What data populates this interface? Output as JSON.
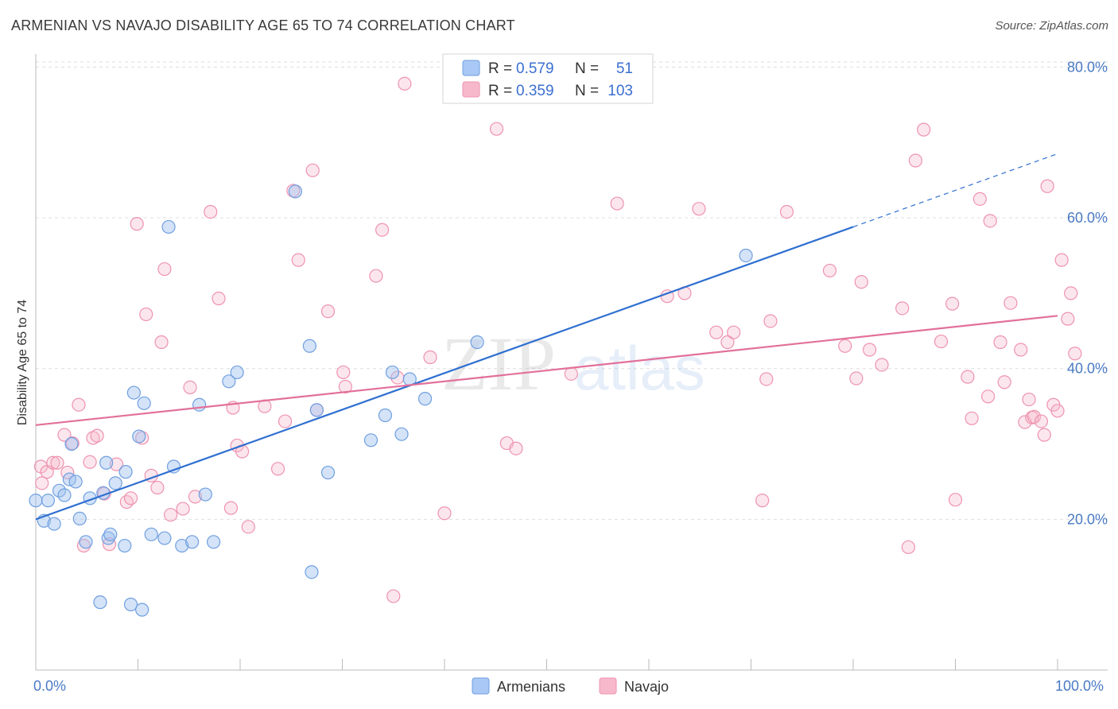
{
  "title": "ARMENIAN VS NAVAJO DISABILITY AGE 65 TO 74 CORRELATION CHART",
  "source": "Source: ZipAtlas.com",
  "watermark": {
    "zip": "ZIP",
    "atlas": "atlas"
  },
  "legend": {
    "r_label": "R =",
    "n_label": "N =",
    "rows": [
      {
        "r": "0.579",
        "n": "51",
        "color": "#a9c8f5"
      },
      {
        "r": "0.359",
        "n": "103",
        "color": "#f7b8cb"
      }
    ]
  },
  "colors": {
    "armenians_fill": "rgba(160,192,240,0.45)",
    "armenians_stroke": "#6f9fe0",
    "armenians_line": "#2f6fd0",
    "navajo_fill": "rgba(246,184,203,0.35)",
    "navajo_stroke": "#ee93b0",
    "navajo_line": "#e2709a",
    "tick_text": "#4a7ac4"
  },
  "chart_data": {
    "type": "scatter",
    "title": "ARMENIAN VS NAVAJO DISABILITY AGE 65 TO 74 CORRELATION CHART",
    "xlabel": "",
    "ylabel": "Disability Age 65 to 74",
    "xlim": [
      0,
      100
    ],
    "ylim": [
      0,
      85
    ],
    "x_tick_labels": [
      "0.0%",
      "100.0%"
    ],
    "y_ticks": [
      20,
      40,
      60,
      80
    ],
    "y_tick_labels": [
      "20.0%",
      "40.0%",
      "60.0%",
      "80.0%"
    ],
    "grid": true,
    "legend_position": "top-center",
    "series": [
      {
        "name": "Armenians",
        "r": 0.579,
        "n": 51,
        "trend": {
          "x": [
            0,
            80
          ],
          "y": [
            20.0,
            58.8
          ],
          "dashed_to": [
            100,
            68.5
          ]
        },
        "points": [
          [
            0,
            22.5
          ],
          [
            0.8,
            19.8
          ],
          [
            1.2,
            22.5
          ],
          [
            1.8,
            19.4
          ],
          [
            2.3,
            23.8
          ],
          [
            2.8,
            23.2
          ],
          [
            3.3,
            25.3
          ],
          [
            3.5,
            30.0
          ],
          [
            3.9,
            25.0
          ],
          [
            4.3,
            20.1
          ],
          [
            4.9,
            17.0
          ],
          [
            5.3,
            22.8
          ],
          [
            6.3,
            9.0
          ],
          [
            6.6,
            23.5
          ],
          [
            6.9,
            27.5
          ],
          [
            7.1,
            17.5
          ],
          [
            7.3,
            18.0
          ],
          [
            7.8,
            24.8
          ],
          [
            8.7,
            16.5
          ],
          [
            8.8,
            26.3
          ],
          [
            9.3,
            8.7
          ],
          [
            9.6,
            36.8
          ],
          [
            10.1,
            31.0
          ],
          [
            10.4,
            8.0
          ],
          [
            10.6,
            35.4
          ],
          [
            11.3,
            18.0
          ],
          [
            12.6,
            17.5
          ],
          [
            13.0,
            58.8
          ],
          [
            13.5,
            27.0
          ],
          [
            14.3,
            16.5
          ],
          [
            15.3,
            17.0
          ],
          [
            16.0,
            35.2
          ],
          [
            16.6,
            23.3
          ],
          [
            17.4,
            17.0
          ],
          [
            18.9,
            38.3
          ],
          [
            19.7,
            39.5
          ],
          [
            25.4,
            63.5
          ],
          [
            26.8,
            43.0
          ],
          [
            27.0,
            13.0
          ],
          [
            27.5,
            34.5
          ],
          [
            28.6,
            26.2
          ],
          [
            32.8,
            30.5
          ],
          [
            34.2,
            33.8
          ],
          [
            34.9,
            39.5
          ],
          [
            35.8,
            31.3
          ],
          [
            36.6,
            38.6
          ],
          [
            38.1,
            36.0
          ],
          [
            43.2,
            43.5
          ],
          [
            69.5,
            55.0
          ]
        ]
      },
      {
        "name": "Navajo",
        "r": 0.359,
        "n": 103,
        "trend": {
          "x": [
            0,
            100
          ],
          "y": [
            32.5,
            47.0
          ]
        },
        "points": [
          [
            0.5,
            27.0
          ],
          [
            0.6,
            24.8
          ],
          [
            1.1,
            26.3
          ],
          [
            1.7,
            27.5
          ],
          [
            2.1,
            27.5
          ],
          [
            2.8,
            31.2
          ],
          [
            3.1,
            26.2
          ],
          [
            3.6,
            30.1
          ],
          [
            4.2,
            35.2
          ],
          [
            4.7,
            16.5
          ],
          [
            5.3,
            27.6
          ],
          [
            5.6,
            30.8
          ],
          [
            6.0,
            31.1
          ],
          [
            6.7,
            23.4
          ],
          [
            7.2,
            16.7
          ],
          [
            7.9,
            27.3
          ],
          [
            8.9,
            22.3
          ],
          [
            9.3,
            22.8
          ],
          [
            9.9,
            59.2
          ],
          [
            10.4,
            30.8
          ],
          [
            10.8,
            47.2
          ],
          [
            11.3,
            25.8
          ],
          [
            11.9,
            24.2
          ],
          [
            12.3,
            43.5
          ],
          [
            12.6,
            53.2
          ],
          [
            13.2,
            20.6
          ],
          [
            14.4,
            21.4
          ],
          [
            15.1,
            37.5
          ],
          [
            15.6,
            23.0
          ],
          [
            17.1,
            60.8
          ],
          [
            17.9,
            49.3
          ],
          [
            19.1,
            21.5
          ],
          [
            19.3,
            34.8
          ],
          [
            19.7,
            29.8
          ],
          [
            20.2,
            29.0
          ],
          [
            20.8,
            19.0
          ],
          [
            22.4,
            35.0
          ],
          [
            23.7,
            26.7
          ],
          [
            24.4,
            33.0
          ],
          [
            25.2,
            63.6
          ],
          [
            25.7,
            54.4
          ],
          [
            27.1,
            66.3
          ],
          [
            27.5,
            34.5
          ],
          [
            28.6,
            47.6
          ],
          [
            30.1,
            39.5
          ],
          [
            30.3,
            37.6
          ],
          [
            33.3,
            52.3
          ],
          [
            33.9,
            58.4
          ],
          [
            35.0,
            9.8
          ],
          [
            35.4,
            38.8
          ],
          [
            36.1,
            77.8
          ],
          [
            38.6,
            41.5
          ],
          [
            40.0,
            20.8
          ],
          [
            45.1,
            71.8
          ],
          [
            46.1,
            30.1
          ],
          [
            47.0,
            29.4
          ],
          [
            52.4,
            39.3
          ],
          [
            56.9,
            61.9
          ],
          [
            61.8,
            49.6
          ],
          [
            63.5,
            50.0
          ],
          [
            64.9,
            61.2
          ],
          [
            66.6,
            44.8
          ],
          [
            67.7,
            43.5
          ],
          [
            68.3,
            44.8
          ],
          [
            71.1,
            22.5
          ],
          [
            71.5,
            38.6
          ],
          [
            71.9,
            46.3
          ],
          [
            73.5,
            60.8
          ],
          [
            77.7,
            53.0
          ],
          [
            79.2,
            43.0
          ],
          [
            80.3,
            38.7
          ],
          [
            80.8,
            51.5
          ],
          [
            81.6,
            42.5
          ],
          [
            82.8,
            40.5
          ],
          [
            84.8,
            48.0
          ],
          [
            85.4,
            16.3
          ],
          [
            86.1,
            67.6
          ],
          [
            86.9,
            71.7
          ],
          [
            88.6,
            43.6
          ],
          [
            89.7,
            48.6
          ],
          [
            90.0,
            22.6
          ],
          [
            91.2,
            38.9
          ],
          [
            91.6,
            33.4
          ],
          [
            92.4,
            62.5
          ],
          [
            93.2,
            36.3
          ],
          [
            93.4,
            59.6
          ],
          [
            94.4,
            43.5
          ],
          [
            94.8,
            38.2
          ],
          [
            95.4,
            48.7
          ],
          [
            96.4,
            42.5
          ],
          [
            96.8,
            32.9
          ],
          [
            97.2,
            35.9
          ],
          [
            97.5,
            33.5
          ],
          [
            97.7,
            33.6
          ],
          [
            98.4,
            33.0
          ],
          [
            98.7,
            31.2
          ],
          [
            99.0,
            64.2
          ],
          [
            99.6,
            35.2
          ],
          [
            100.0,
            34.4
          ],
          [
            100.4,
            54.4
          ],
          [
            101.0,
            46.6
          ],
          [
            101.3,
            50.0
          ],
          [
            101.7,
            42.0
          ]
        ]
      }
    ]
  },
  "bottom_legend": [
    {
      "label": "Armenians"
    },
    {
      "label": "Navajo"
    }
  ]
}
